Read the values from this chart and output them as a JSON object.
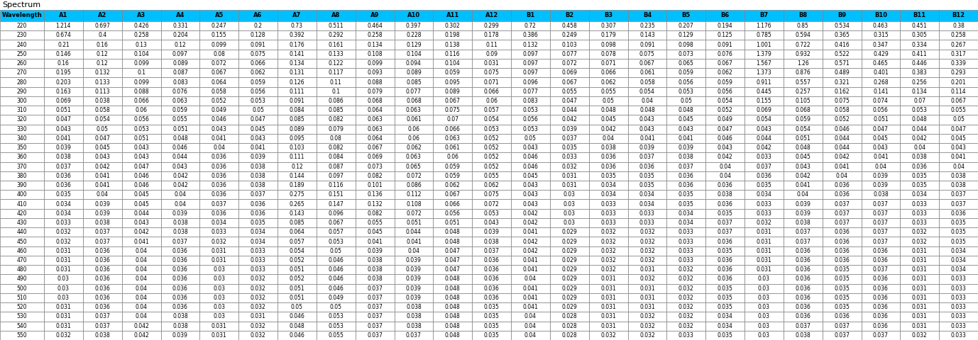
{
  "title": "Spectrum",
  "header_row": [
    "Wavelength",
    "A1",
    "A2",
    "A3",
    "A4",
    "A5",
    "A6",
    "A7",
    "A8",
    "A9",
    "A10",
    "A11",
    "A12",
    "B1",
    "B2",
    "B3",
    "B4",
    "B5",
    "B6",
    "B7",
    "B8",
    "B9",
    "B10",
    "B11",
    "B12"
  ],
  "wavelengths": [
    220,
    230,
    240,
    250,
    260,
    270,
    280,
    290,
    300,
    310,
    320,
    330,
    340,
    350,
    360,
    370,
    380,
    390,
    400,
    410,
    420,
    430,
    440,
    450,
    460,
    470,
    480,
    490,
    500,
    510,
    520,
    530,
    540,
    550
  ],
  "data": [
    [
      1.214,
      0.697,
      0.426,
      0.331,
      0.247,
      0.2,
      0.73,
      0.511,
      0.464,
      0.397,
      0.302,
      0.299,
      0.72,
      0.458,
      0.307,
      0.235,
      0.207,
      0.194,
      1.176,
      0.85,
      0.534,
      0.463,
      0.451,
      0.38
    ],
    [
      0.674,
      0.4,
      0.258,
      0.204,
      0.155,
      0.128,
      0.392,
      0.292,
      0.258,
      0.228,
      0.198,
      0.178,
      0.386,
      0.249,
      0.179,
      0.143,
      0.129,
      0.125,
      0.785,
      0.594,
      0.365,
      0.315,
      0.305,
      0.258
    ],
    [
      0.21,
      0.16,
      0.13,
      0.12,
      0.099,
      0.091,
      0.176,
      0.161,
      0.134,
      0.129,
      0.138,
      0.11,
      0.132,
      0.103,
      0.098,
      0.091,
      0.098,
      0.091,
      1.001,
      0.722,
      0.416,
      0.347,
      0.334,
      0.267
    ],
    [
      0.146,
      0.12,
      0.104,
      0.097,
      0.08,
      0.075,
      0.141,
      0.133,
      0.108,
      0.104,
      0.116,
      0.09,
      0.097,
      0.077,
      0.078,
      0.075,
      0.073,
      0.076,
      1.379,
      0.932,
      0.522,
      0.429,
      0.411,
      0.317
    ],
    [
      0.16,
      0.12,
      0.099,
      0.089,
      0.072,
      0.066,
      0.134,
      0.122,
      0.099,
      0.094,
      0.104,
      0.031,
      0.097,
      0.072,
      0.071,
      0.067,
      0.065,
      0.067,
      1.567,
      1.26,
      0.571,
      0.465,
      0.446,
      0.339
    ],
    [
      0.195,
      0.132,
      0.1,
      0.087,
      0.067,
      0.062,
      0.131,
      0.117,
      0.093,
      0.089,
      0.059,
      0.075,
      0.097,
      0.069,
      0.066,
      0.061,
      0.059,
      0.062,
      1.373,
      0.876,
      0.489,
      0.401,
      0.383,
      0.293
    ],
    [
      0.203,
      0.133,
      0.099,
      0.083,
      0.064,
      0.059,
      0.126,
      0.11,
      0.088,
      0.085,
      0.095,
      0.071,
      0.096,
      0.067,
      0.062,
      0.058,
      0.056,
      0.059,
      0.911,
      0.557,
      0.321,
      0.268,
      0.256,
      0.201
    ],
    [
      0.163,
      0.113,
      0.088,
      0.076,
      0.058,
      0.056,
      0.111,
      0.1,
      0.079,
      0.077,
      0.089,
      0.066,
      0.077,
      0.055,
      0.055,
      0.054,
      0.053,
      0.056,
      0.445,
      0.257,
      0.162,
      0.141,
      0.134,
      0.114
    ],
    [
      0.069,
      0.038,
      0.066,
      0.063,
      0.052,
      0.053,
      0.091,
      0.086,
      0.068,
      0.068,
      0.067,
      0.06,
      0.083,
      0.047,
      0.05,
      0.04,
      0.05,
      0.054,
      0.155,
      0.105,
      0.075,
      0.074,
      0.07,
      0.067
    ],
    [
      0.051,
      0.058,
      0.06,
      0.059,
      0.049,
      0.05,
      0.084,
      0.085,
      0.064,
      0.063,
      0.075,
      0.057,
      0.053,
      0.044,
      0.048,
      0.048,
      0.048,
      0.052,
      0.069,
      0.068,
      0.058,
      0.056,
      0.053,
      0.055
    ],
    [
      0.047,
      0.054,
      0.056,
      0.055,
      0.046,
      0.047,
      0.085,
      0.082,
      0.063,
      0.061,
      0.07,
      0.054,
      0.056,
      0.042,
      0.045,
      0.043,
      0.045,
      0.049,
      0.054,
      0.059,
      0.052,
      0.051,
      0.048,
      0.05
    ],
    [
      0.043,
      0.05,
      0.053,
      0.051,
      0.043,
      0.045,
      0.089,
      0.079,
      0.063,
      0.06,
      0.066,
      0.053,
      0.053,
      0.039,
      0.042,
      0.043,
      0.043,
      0.047,
      0.043,
      0.054,
      0.046,
      0.047,
      0.044,
      0.047
    ],
    [
      0.041,
      0.047,
      0.051,
      0.048,
      0.041,
      0.043,
      0.095,
      0.08,
      0.064,
      0.06,
      0.063,
      0.052,
      0.05,
      0.037,
      0.04,
      0.041,
      0.041,
      0.046,
      0.044,
      0.051,
      0.044,
      0.045,
      0.042,
      0.045
    ],
    [
      0.039,
      0.045,
      0.043,
      0.046,
      0.04,
      0.041,
      0.103,
      0.082,
      0.067,
      0.062,
      0.061,
      0.052,
      0.043,
      0.035,
      0.038,
      0.039,
      0.039,
      0.043,
      0.042,
      0.048,
      0.044,
      0.043,
      0.04,
      0.043
    ],
    [
      0.038,
      0.043,
      0.043,
      0.044,
      0.036,
      0.039,
      0.111,
      0.084,
      0.069,
      0.063,
      0.06,
      0.052,
      0.046,
      0.033,
      0.036,
      0.037,
      0.038,
      0.042,
      0.033,
      0.045,
      0.042,
      0.041,
      0.038,
      0.041
    ],
    [
      0.037,
      0.042,
      0.047,
      0.043,
      0.036,
      0.038,
      0.12,
      0.087,
      0.073,
      0.065,
      0.059,
      0.052,
      0.046,
      0.032,
      0.036,
      0.036,
      0.037,
      0.04,
      0.037,
      0.043,
      0.041,
      0.04,
      0.036,
      0.04
    ],
    [
      0.036,
      0.041,
      0.046,
      0.042,
      0.036,
      0.038,
      0.144,
      0.097,
      0.082,
      0.072,
      0.059,
      0.055,
      0.045,
      0.031,
      0.035,
      0.035,
      0.036,
      0.04,
      0.036,
      0.042,
      0.04,
      0.039,
      0.035,
      0.038
    ],
    [
      0.036,
      0.041,
      0.046,
      0.042,
      0.036,
      0.038,
      0.189,
      0.116,
      0.101,
      0.086,
      0.062,
      0.062,
      0.043,
      0.031,
      0.034,
      0.035,
      0.036,
      0.036,
      0.035,
      0.041,
      0.036,
      0.039,
      0.035,
      0.038
    ],
    [
      0.035,
      0.04,
      0.045,
      0.04,
      0.036,
      0.037,
      0.275,
      0.151,
      0.136,
      0.112,
      0.067,
      0.075,
      0.043,
      0.03,
      0.034,
      0.034,
      0.035,
      0.038,
      0.034,
      0.04,
      0.036,
      0.038,
      0.034,
      0.037
    ],
    [
      0.034,
      0.039,
      0.045,
      0.04,
      0.037,
      0.036,
      0.265,
      0.147,
      0.132,
      0.108,
      0.066,
      0.072,
      0.043,
      0.03,
      0.033,
      0.034,
      0.035,
      0.036,
      0.033,
      0.039,
      0.037,
      0.037,
      0.033,
      0.037
    ],
    [
      0.034,
      0.039,
      0.044,
      0.039,
      0.036,
      0.036,
      0.143,
      0.096,
      0.082,
      0.072,
      0.056,
      0.053,
      0.042,
      0.03,
      0.033,
      0.033,
      0.034,
      0.035,
      0.033,
      0.039,
      0.037,
      0.037,
      0.033,
      0.036
    ],
    [
      0.033,
      0.038,
      0.043,
      0.038,
      0.034,
      0.035,
      0.085,
      0.067,
      0.055,
      0.051,
      0.051,
      0.043,
      0.042,
      0.03,
      0.033,
      0.033,
      0.034,
      0.037,
      0.032,
      0.038,
      0.037,
      0.037,
      0.033,
      0.035
    ],
    [
      0.032,
      0.037,
      0.042,
      0.038,
      0.033,
      0.034,
      0.064,
      0.057,
      0.045,
      0.044,
      0.048,
      0.039,
      0.041,
      0.029,
      0.032,
      0.032,
      0.033,
      0.037,
      0.031,
      0.037,
      0.036,
      0.037,
      0.032,
      0.035
    ],
    [
      0.032,
      0.037,
      0.041,
      0.037,
      0.032,
      0.034,
      0.057,
      0.053,
      0.041,
      0.041,
      0.048,
      0.038,
      0.042,
      0.029,
      0.032,
      0.032,
      0.033,
      0.036,
      0.031,
      0.037,
      0.036,
      0.037,
      0.032,
      0.035
    ],
    [
      0.031,
      0.036,
      0.04,
      0.036,
      0.031,
      0.033,
      0.054,
      0.05,
      0.039,
      0.04,
      0.047,
      0.037,
      0.042,
      0.029,
      0.032,
      0.032,
      0.033,
      0.035,
      0.031,
      0.036,
      0.036,
      0.036,
      0.031,
      0.034
    ],
    [
      0.031,
      0.036,
      0.04,
      0.036,
      0.031,
      0.033,
      0.052,
      0.046,
      0.038,
      0.039,
      0.047,
      0.036,
      0.041,
      0.029,
      0.032,
      0.032,
      0.033,
      0.036,
      0.031,
      0.036,
      0.036,
      0.036,
      0.031,
      0.034
    ],
    [
      0.031,
      0.036,
      0.04,
      0.036,
      0.03,
      0.033,
      0.051,
      0.046,
      0.038,
      0.039,
      0.047,
      0.036,
      0.041,
      0.029,
      0.032,
      0.031,
      0.032,
      0.036,
      0.031,
      0.036,
      0.035,
      0.037,
      0.031,
      0.034
    ],
    [
      0.03,
      0.036,
      0.04,
      0.036,
      0.03,
      0.032,
      0.052,
      0.046,
      0.038,
      0.039,
      0.048,
      0.036,
      0.04,
      0.029,
      0.031,
      0.032,
      0.032,
      0.036,
      0.03,
      0.036,
      0.035,
      0.036,
      0.031,
      0.033
    ],
    [
      0.03,
      0.036,
      0.04,
      0.036,
      0.03,
      0.032,
      0.051,
      0.046,
      0.037,
      0.039,
      0.048,
      0.036,
      0.041,
      0.029,
      0.031,
      0.031,
      0.032,
      0.035,
      0.03,
      0.036,
      0.035,
      0.036,
      0.031,
      0.033
    ],
    [
      0.03,
      0.036,
      0.04,
      0.036,
      0.03,
      0.032,
      0.051,
      0.049,
      0.037,
      0.039,
      0.048,
      0.036,
      0.041,
      0.029,
      0.031,
      0.031,
      0.032,
      0.035,
      0.03,
      0.036,
      0.035,
      0.036,
      0.031,
      0.033
    ],
    [
      0.031,
      0.036,
      0.04,
      0.036,
      0.03,
      0.032,
      0.05,
      0.05,
      0.037,
      0.038,
      0.048,
      0.035,
      0.041,
      0.029,
      0.031,
      0.031,
      0.032,
      0.035,
      0.03,
      0.036,
      0.035,
      0.036,
      0.031,
      0.033
    ],
    [
      0.031,
      0.037,
      0.04,
      0.038,
      0.03,
      0.031,
      0.046,
      0.053,
      0.037,
      0.038,
      0.048,
      0.035,
      0.04,
      0.028,
      0.031,
      0.032,
      0.032,
      0.034,
      0.03,
      0.036,
      0.036,
      0.036,
      0.031,
      0.033
    ],
    [
      0.031,
      0.037,
      0.042,
      0.038,
      0.031,
      0.032,
      0.048,
      0.053,
      0.037,
      0.038,
      0.048,
      0.035,
      0.04,
      0.028,
      0.031,
      0.032,
      0.032,
      0.034,
      0.03,
      0.037,
      0.037,
      0.036,
      0.031,
      0.033
    ],
    [
      0.032,
      0.038,
      0.042,
      0.039,
      0.031,
      0.032,
      0.046,
      0.055,
      0.037,
      0.037,
      0.048,
      0.035,
      0.04,
      0.028,
      0.032,
      0.032,
      0.033,
      0.035,
      0.03,
      0.038,
      0.037,
      0.037,
      0.032,
      0.033
    ]
  ],
  "header_bg": "#00BFFF",
  "header_text_color": "#000000",
  "border_color": "#808080",
  "title_color": "#000000",
  "cell_font_size": 5.5,
  "header_font_size": 6.0,
  "title_font_size": 8,
  "fig_width": 13.78,
  "fig_height": 4.8,
  "dpi": 100
}
